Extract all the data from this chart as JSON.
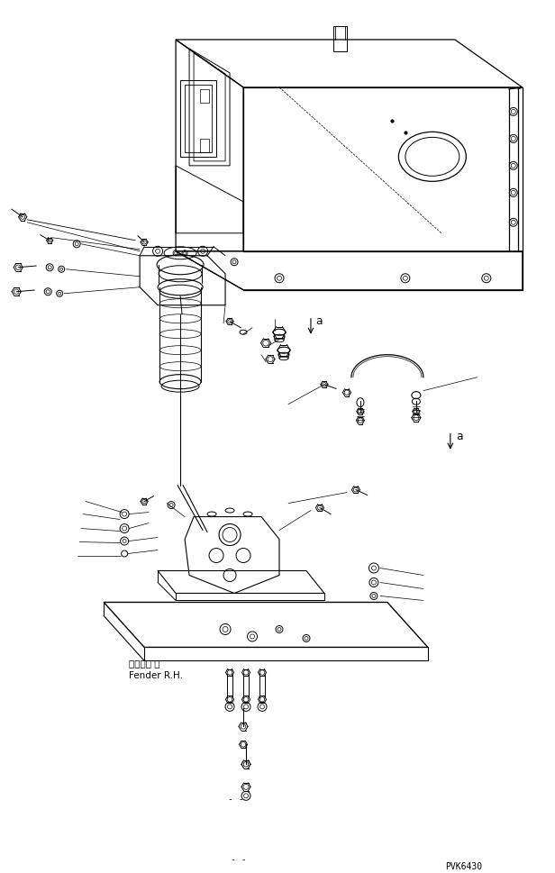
{
  "background_color": "#ffffff",
  "line_color": "#000000",
  "watermark": "PVK6430",
  "label_fender": "フェンダ 右",
  "label_fender_en": "Fender R.H.",
  "fig_width": 6.16,
  "fig_height": 9.7,
  "dpi": 100
}
